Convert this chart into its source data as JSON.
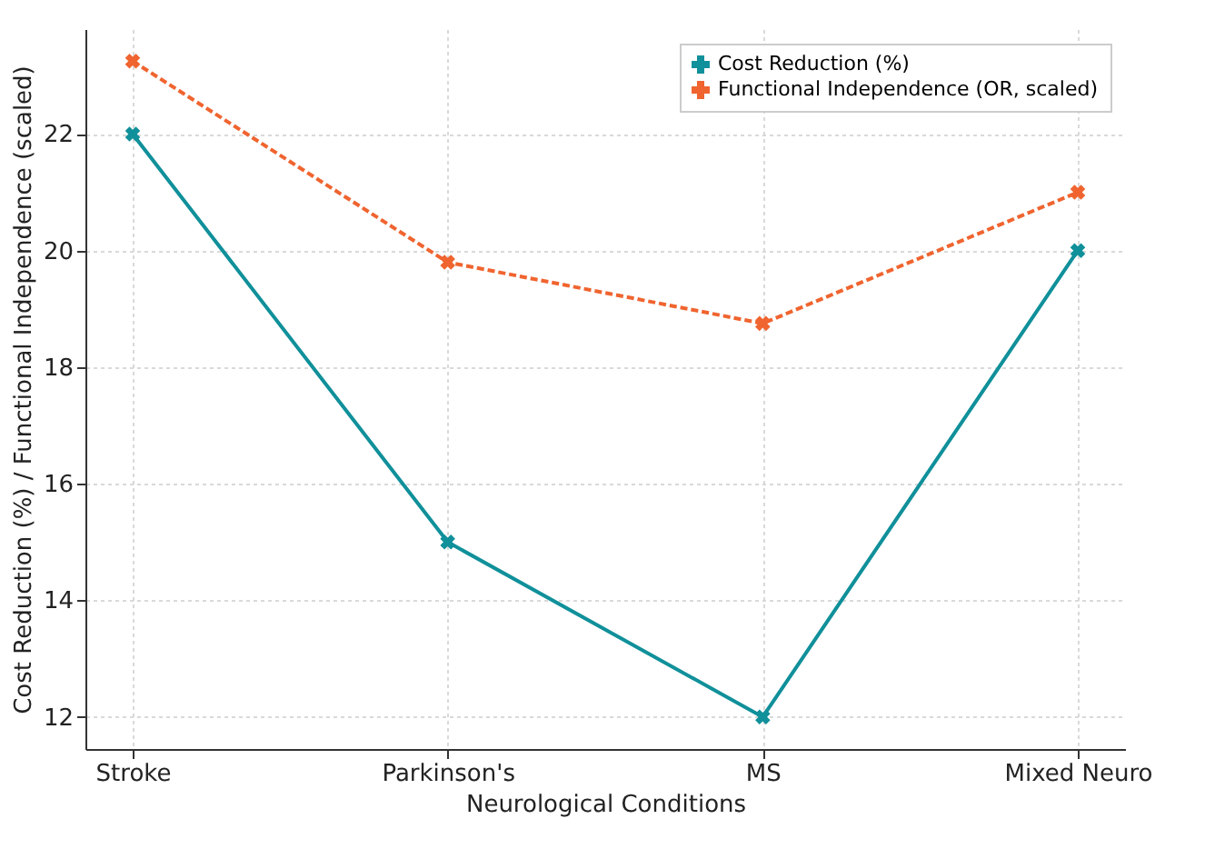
{
  "chart_data": {
    "type": "line",
    "xlabel": "Neurological Conditions",
    "ylabel": "Cost Reduction (%) / Functional Independence (scaled)",
    "categories": [
      "Stroke",
      "Parkinson's",
      "MS",
      "Mixed Neuro"
    ],
    "series": [
      {
        "name": "Cost Reduction (%)",
        "color": "#10909a",
        "values": [
          22,
          15,
          12,
          20
        ],
        "line_style": "solid"
      },
      {
        "name": "Functional Independence (OR, scaled)",
        "color": "#f0642f",
        "values": [
          23.25,
          19.8,
          18.75,
          21.0
        ],
        "line_style": "dashed"
      }
    ],
    "ylim": [
      11.45,
      23.8
    ],
    "yticks": [
      12,
      14,
      16,
      18,
      20,
      22
    ],
    "grid": true,
    "legend": "top right",
    "marker": "cross"
  }
}
